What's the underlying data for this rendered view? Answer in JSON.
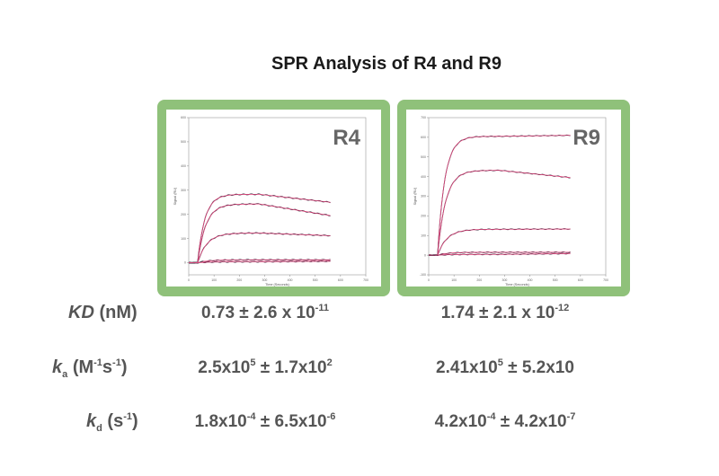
{
  "title": "SPR Analysis of R4 and R9",
  "colors": {
    "panel_border": "#8fc17a",
    "fit_line": "#e0457b",
    "data_line": "#2b2b3a",
    "text": "#555555"
  },
  "chart_data": [
    {
      "type": "line",
      "panel_label": "R4",
      "xlabel": "Time (Seconds)",
      "ylabel": "Signal (RU)",
      "xlim": [
        0,
        700
      ],
      "ylim": [
        -50,
        600
      ],
      "x_ticks": [
        0,
        100,
        200,
        300,
        400,
        500,
        600,
        700
      ],
      "y_ticks": [
        0,
        100,
        200,
        300,
        400,
        500,
        600
      ],
      "grid": false,
      "association_end": 280,
      "series": [
        {
          "plateau": 283,
          "end": 250
        },
        {
          "plateau": 243,
          "end": 195
        },
        {
          "plateau": 123,
          "end": 112
        },
        {
          "plateau": 12,
          "end": 12
        },
        {
          "plateau": 4,
          "end": 6
        }
      ]
    },
    {
      "type": "line",
      "panel_label": "R9",
      "xlabel": "Time (Seconds)",
      "ylabel": "Signal (RU)",
      "xlim": [
        0,
        700
      ],
      "ylim": [
        -100,
        700
      ],
      "x_ticks": [
        0,
        100,
        200,
        300,
        400,
        500,
        600,
        700
      ],
      "y_ticks": [
        -100,
        0,
        100,
        200,
        300,
        400,
        500,
        600,
        700
      ],
      "grid": false,
      "association_end": 280,
      "series": [
        {
          "plateau": 605,
          "end": 610
        },
        {
          "plateau": 432,
          "end": 395
        },
        {
          "plateau": 132,
          "end": 133
        },
        {
          "plateau": 15,
          "end": 15
        },
        {
          "plateau": 4,
          "end": 8
        }
      ]
    }
  ],
  "table": {
    "kd_label": "KD",
    "kd_unit": "(nM)",
    "ka_label": "k",
    "ka_sub": "a",
    "ka_unit_open": "(M",
    "ka_unit_exp1": "-1",
    "ka_unit_s": "s",
    "ka_unit_exp2": "-1",
    "ka_unit_close": ")",
    "kdis_label": "k",
    "kdis_sub": "d",
    "kdis_unit_open": "(s",
    "kdis_unit_exp": "-1",
    "kdis_unit_close": ")",
    "r4": {
      "kd_base": "0.73 ± 2.6 x 10",
      "kd_exp": "-11",
      "ka_a": "2.5x10",
      "ka_a_exp": "5",
      "ka_b": " ± 1.7x10",
      "ka_b_exp": "2",
      "kdis_a": "1.8x10",
      "kdis_a_exp": "-4",
      "kdis_b": " ± 6.5x10",
      "kdis_b_exp": "-6"
    },
    "r9": {
      "kd_base": "1.74 ± 2.1 x 10",
      "kd_exp": "-12",
      "ka_a": "2.41x10",
      "ka_a_exp": "5",
      "ka_b": " ± 5.2x10",
      "kdis_a": "4.2x10",
      "kdis_a_exp": "-4",
      "kdis_b": " ± 4.2x10",
      "kdis_b_exp": "-7"
    }
  }
}
